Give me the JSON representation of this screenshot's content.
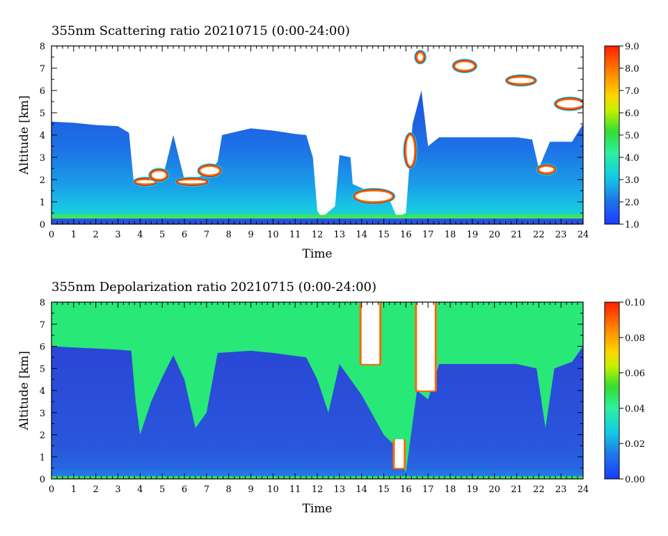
{
  "charts": [
    {
      "id": "scattering",
      "title": "355nm Scattering ratio  20210715 (0:00-24:00)",
      "xlabel": "Time",
      "ylabel": "Altitude [km]",
      "xticks": [
        "0",
        "1",
        "2",
        "3",
        "4",
        "5",
        "6",
        "7",
        "8",
        "9",
        "10",
        "11",
        "12",
        "13",
        "14",
        "15",
        "16",
        "17",
        "18",
        "19",
        "20",
        "21",
        "22",
        "23",
        "24"
      ],
      "yticks": [
        "0",
        "1",
        "2",
        "3",
        "4",
        "5",
        "6",
        "7",
        "8"
      ],
      "colorbar_ticks": [
        "1.0",
        "2.0",
        "3.0",
        "4.0",
        "5.0",
        "6.0",
        "7.0",
        "8.0",
        "9.0"
      ]
    },
    {
      "id": "depolarization",
      "title": "355nm Depolarization ratio  20210715 (0:00-24:00)",
      "xlabel": "Time",
      "ylabel": "Altitude [km]",
      "xticks": [
        "0",
        "1",
        "2",
        "3",
        "4",
        "5",
        "6",
        "7",
        "8",
        "9",
        "10",
        "11",
        "12",
        "13",
        "14",
        "15",
        "16",
        "17",
        "18",
        "19",
        "20",
        "21",
        "22",
        "23",
        "24"
      ],
      "yticks": [
        "0",
        "1",
        "2",
        "3",
        "4",
        "5",
        "6",
        "7",
        "8"
      ],
      "colorbar_ticks": [
        "0.00",
        "0.02",
        "0.04",
        "0.06",
        "0.08",
        "0.10"
      ]
    }
  ],
  "chart_data": [
    {
      "type": "heatmap",
      "title": "355nm Scattering ratio  20210715 (0:00-24:00)",
      "xlabel": "Time",
      "ylabel": "Altitude [km]",
      "xlim": [
        0,
        24
      ],
      "ylim": [
        0,
        8
      ],
      "colorbar_range": [
        1.0,
        9.0
      ],
      "colormap": "rainbow (blue-cyan-green-yellow-red)",
      "features": {
        "boundary_layer_top_km": [
          [
            0,
            4.6
          ],
          [
            1,
            4.55
          ],
          [
            2,
            4.45
          ],
          [
            3,
            4.4
          ],
          [
            3.5,
            4.1
          ],
          [
            3.7,
            2.0
          ],
          [
            4.0,
            1.85
          ],
          [
            5.0,
            2.0
          ],
          [
            5.5,
            4.0
          ],
          [
            6.0,
            2.0
          ],
          [
            7.0,
            2.2
          ],
          [
            7.5,
            2.8
          ],
          [
            7.7,
            4.0
          ],
          [
            9.0,
            4.3
          ],
          [
            10.0,
            4.2
          ],
          [
            11.0,
            4.05
          ],
          [
            11.5,
            4.0
          ],
          [
            11.8,
            3.0
          ],
          [
            12.0,
            0.6
          ],
          [
            12.2,
            0.3
          ],
          [
            12.8,
            0.8
          ],
          [
            13.0,
            3.1
          ],
          [
            13.5,
            3.0
          ],
          [
            13.6,
            1.8
          ],
          [
            14.5,
            1.4
          ],
          [
            15.0,
            1.2
          ],
          [
            15.3,
            1.0
          ],
          [
            15.6,
            0.3
          ],
          [
            16.0,
            0.5
          ],
          [
            16.3,
            4.5
          ],
          [
            16.7,
            6.0
          ],
          [
            17.0,
            3.5
          ],
          [
            17.5,
            3.9
          ],
          [
            19,
            3.9
          ],
          [
            21,
            3.9
          ],
          [
            21.7,
            3.8
          ],
          [
            22.0,
            2.5
          ],
          [
            22.5,
            3.7
          ],
          [
            23.5,
            3.7
          ],
          [
            24,
            4.5
          ]
        ],
        "cloud_layers_km": [
          {
            "time": [
              3.8,
              4.7
            ],
            "alt": [
              1.8,
              2.0
            ]
          },
          {
            "time": [
              4.5,
              5.2
            ],
            "alt": [
              2.0,
              2.4
            ]
          },
          {
            "time": [
              5.7,
              7.0
            ],
            "alt": [
              1.8,
              2.0
            ]
          },
          {
            "time": [
              6.7,
              7.6
            ],
            "alt": [
              2.2,
              2.6
            ]
          },
          {
            "time": [
              13.7,
              15.4
            ],
            "alt": [
              1.0,
              1.5
            ]
          },
          {
            "time": [
              16.0,
              16.4
            ],
            "alt": [
              2.6,
              4.0
            ]
          },
          {
            "time": [
              16.5,
              16.8
            ],
            "alt": [
              7.3,
              7.7
            ]
          },
          {
            "time": [
              18.2,
              19.1
            ],
            "alt": [
              6.9,
              7.3
            ]
          },
          {
            "time": [
              20.6,
              21.8
            ],
            "alt": [
              6.3,
              6.6
            ]
          },
          {
            "time": [
              22.0,
              22.7
            ],
            "alt": [
              2.3,
              2.6
            ]
          },
          {
            "time": [
              22.8,
              24.0
            ],
            "alt": [
              5.2,
              5.6
            ]
          }
        ]
      }
    },
    {
      "type": "heatmap",
      "title": "355nm Depolarization ratio  20210715 (0:00-24:00)",
      "xlabel": "Time",
      "ylabel": "Altitude [km]",
      "xlim": [
        0,
        24
      ],
      "ylim": [
        0,
        8
      ],
      "colorbar_range": [
        0.0,
        0.1
      ],
      "colormap": "rainbow (blue-cyan-green-yellow-red)",
      "features": {
        "low_depol_top_km": [
          [
            0,
            6.0
          ],
          [
            1,
            5.95
          ],
          [
            2,
            5.9
          ],
          [
            3,
            5.85
          ],
          [
            3.6,
            5.8
          ],
          [
            3.8,
            3.5
          ],
          [
            4.0,
            2.0
          ],
          [
            4.5,
            3.5
          ],
          [
            5.0,
            4.6
          ],
          [
            5.5,
            5.6
          ],
          [
            6.0,
            4.5
          ],
          [
            6.5,
            2.3
          ],
          [
            7.0,
            3.0
          ],
          [
            7.5,
            5.7
          ],
          [
            9.0,
            5.8
          ],
          [
            10.0,
            5.7
          ],
          [
            11.5,
            5.5
          ],
          [
            12.0,
            4.5
          ],
          [
            12.5,
            3.0
          ],
          [
            13.0,
            5.2
          ],
          [
            13.5,
            4.5
          ],
          [
            14.0,
            3.8
          ],
          [
            15.0,
            2.0
          ],
          [
            15.5,
            1.5
          ],
          [
            16.0,
            0.3
          ],
          [
            16.5,
            4.0
          ],
          [
            17.0,
            3.6
          ],
          [
            17.5,
            5.2
          ],
          [
            19,
            5.2
          ],
          [
            21,
            5.2
          ],
          [
            21.9,
            5.0
          ],
          [
            22.3,
            2.3
          ],
          [
            22.7,
            5.0
          ],
          [
            23.5,
            5.3
          ],
          [
            24,
            6.0
          ]
        ],
        "high_depol_regions": [
          {
            "time": [
              14.0,
              14.8
            ],
            "alt": [
              5.2,
              8.0
            ],
            "value_min": 0.1
          },
          {
            "time": [
              16.5,
              17.3
            ],
            "alt": [
              4.0,
              8.0
            ],
            "value_min": 0.1
          },
          {
            "time": [
              15.5,
              15.9
            ],
            "alt": [
              0.5,
              1.8
            ],
            "value_min": 0.08
          }
        ]
      }
    }
  ]
}
